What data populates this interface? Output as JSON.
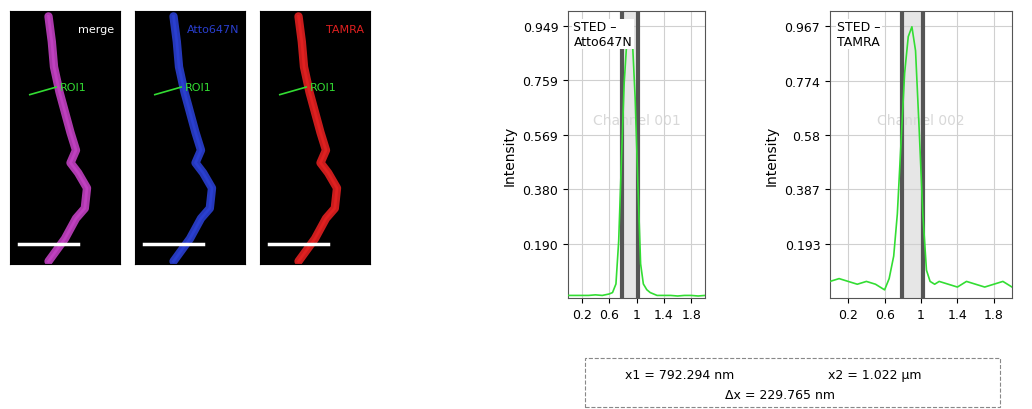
{
  "images": [
    {
      "label": "merge",
      "color": "#c040c0",
      "roi": "ROI1"
    },
    {
      "label": "Atto647N",
      "color": "#2a3fd0",
      "roi": "ROI1"
    },
    {
      "label": "TAMRA",
      "color": "#e02020",
      "roi": "ROI1"
    }
  ],
  "chart_data": [
    {
      "type": "line",
      "title": "STED –\nAtto647N",
      "watermark": "Channel 001",
      "y_label": "Intensity",
      "x": [
        0.0,
        0.1,
        0.2,
        0.3,
        0.4,
        0.5,
        0.6,
        0.65,
        0.7,
        0.74,
        0.78,
        0.82,
        0.86,
        0.9,
        0.94,
        0.98,
        1.02,
        1.06,
        1.1,
        1.15,
        1.2,
        1.3,
        1.4,
        1.5,
        1.6,
        1.7,
        1.8,
        1.9,
        2.0
      ],
      "values": [
        0.01,
        0.01,
        0.01,
        0.01,
        0.012,
        0.01,
        0.015,
        0.02,
        0.05,
        0.2,
        0.48,
        0.75,
        0.9,
        0.945,
        0.9,
        0.7,
        0.4,
        0.12,
        0.05,
        0.03,
        0.02,
        0.01,
        0.01,
        0.01,
        0.008,
        0.01,
        0.01,
        0.008,
        0.01
      ],
      "color": "#33dd33",
      "highlight_range": [
        0.792294,
        1.022
      ],
      "xlim": [
        0,
        2.0
      ],
      "xticks": [
        0.2,
        0.6,
        1,
        1.4,
        1.8
      ],
      "ylim": [
        0,
        1.0
      ],
      "yticks": [
        {
          "value": 0.19,
          "label": "0.190"
        },
        {
          "value": 0.38,
          "label": "0.380"
        },
        0.569,
        0.759,
        0.949
      ],
      "grid": true
    },
    {
      "type": "line",
      "title": "STED –\nTAMRA",
      "watermark": "Channel 002",
      "y_label": "Intensity",
      "x": [
        0.0,
        0.1,
        0.2,
        0.3,
        0.4,
        0.5,
        0.6,
        0.65,
        0.7,
        0.74,
        0.78,
        0.82,
        0.86,
        0.9,
        0.94,
        0.98,
        1.02,
        1.06,
        1.1,
        1.15,
        1.2,
        1.3,
        1.4,
        1.5,
        1.6,
        1.7,
        1.8,
        1.9,
        2.0
      ],
      "values": [
        0.06,
        0.07,
        0.06,
        0.05,
        0.06,
        0.05,
        0.03,
        0.07,
        0.15,
        0.3,
        0.55,
        0.8,
        0.93,
        0.965,
        0.88,
        0.6,
        0.3,
        0.1,
        0.06,
        0.05,
        0.06,
        0.05,
        0.04,
        0.06,
        0.05,
        0.04,
        0.05,
        0.06,
        0.04
      ],
      "color": "#33dd33",
      "highlight_range": [
        0.792294,
        1.022
      ],
      "xlim": [
        0,
        2.0
      ],
      "xticks": [
        0.2,
        0.6,
        1,
        1.4,
        1.8
      ],
      "ylim": [
        0,
        1.02
      ],
      "yticks": [
        0.193,
        0.387,
        0.58,
        0.774,
        0.967
      ],
      "grid": true
    }
  ],
  "measurement": {
    "x1": "x1 = 792.294 nm",
    "x2": "x2 = 1.022 µm",
    "dx": "Δx = 229.765 nm"
  }
}
